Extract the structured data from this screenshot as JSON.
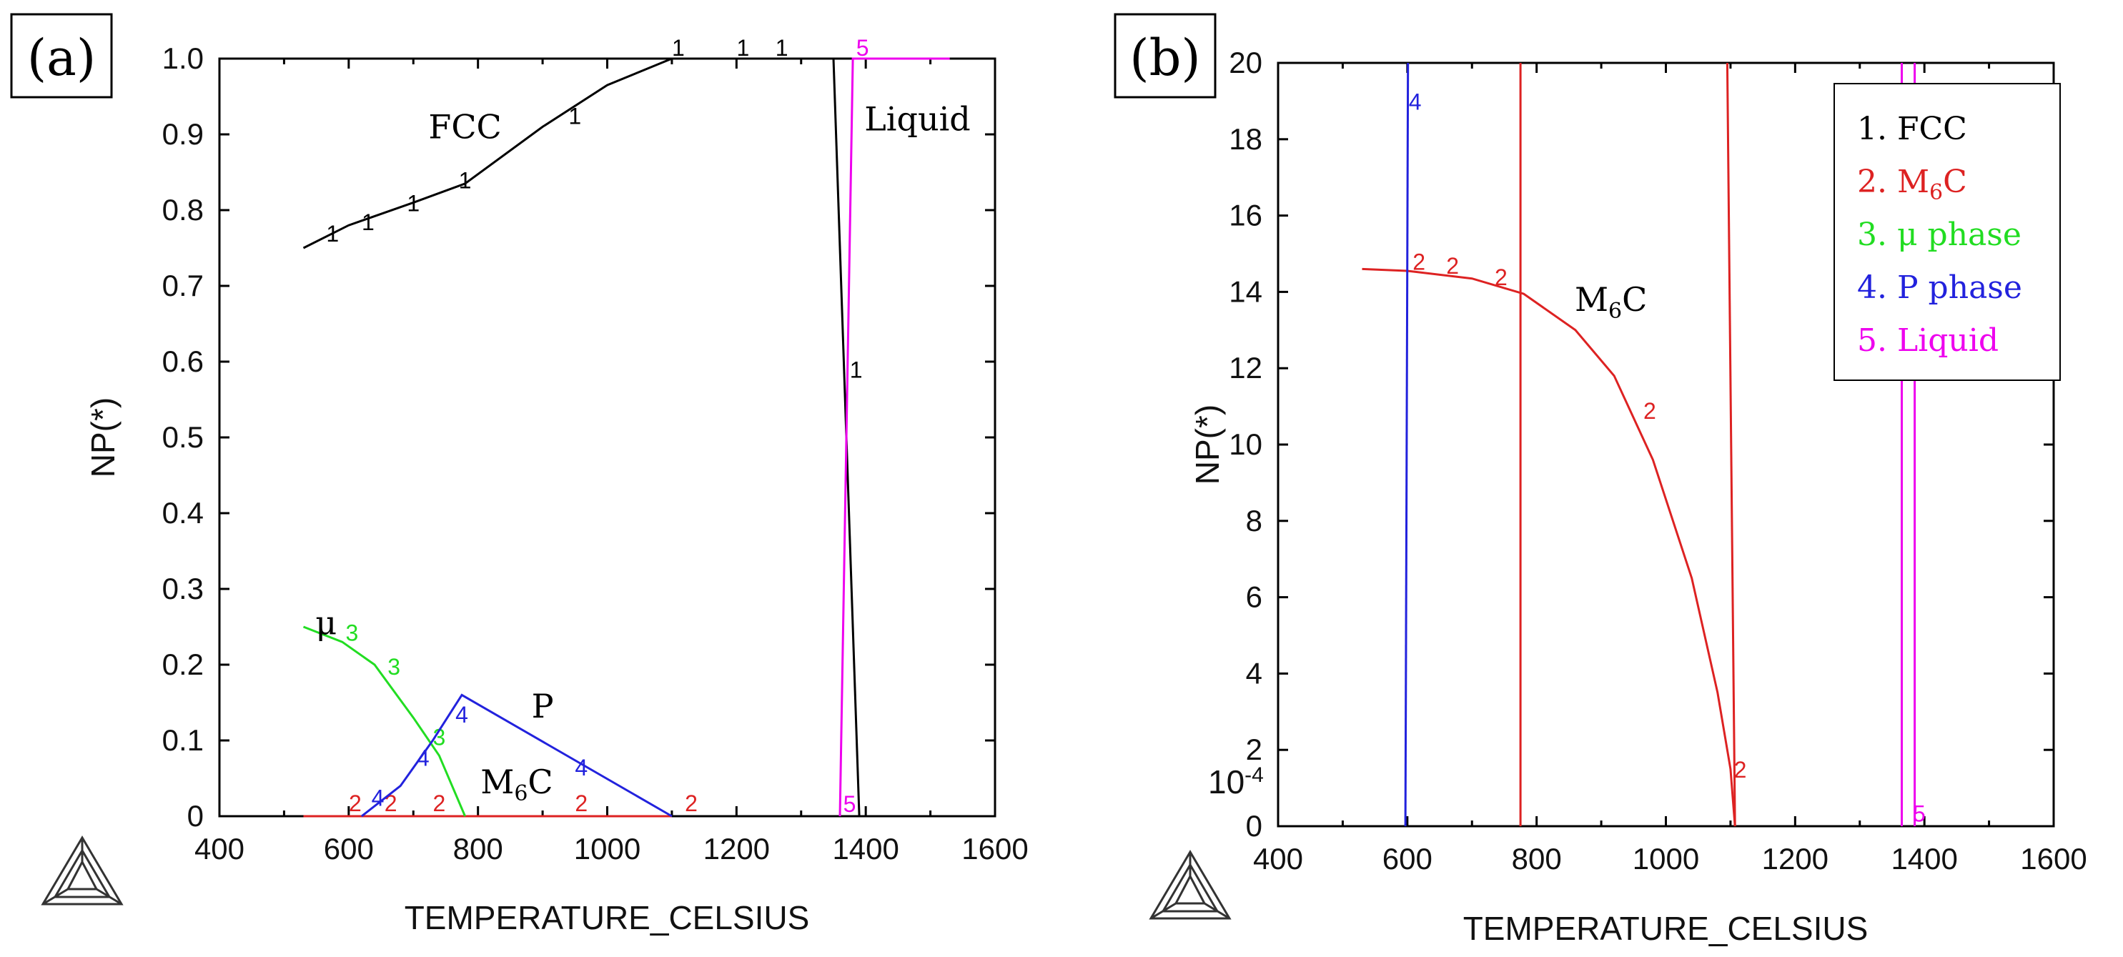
{
  "chart_data": [
    {
      "panel": "(a)",
      "type": "line",
      "xlabel": "TEMPERATURE_CELSIUS",
      "ylabel": "NP(*)",
      "xlim": [
        400,
        1600
      ],
      "ylim": [
        0,
        1.0
      ],
      "xticks": [
        "400",
        "600",
        "800",
        "1000",
        "1200",
        "1400",
        "1600"
      ],
      "yticks": [
        "0",
        "0.1",
        "0.2",
        "0.3",
        "0.4",
        "0.5",
        "0.6",
        "0.7",
        "0.8",
        "0.9",
        "1.0"
      ],
      "series": [
        {
          "id": "1",
          "name": "FCC",
          "color": "#000000",
          "points": [
            [
              530,
              0.75
            ],
            [
              600,
              0.78
            ],
            [
              700,
              0.81
            ],
            [
              780,
              0.835
            ],
            [
              900,
              0.91
            ],
            [
              1000,
              0.965
            ],
            [
              1100,
              1.0
            ],
            [
              1350,
              1.0
            ]
          ],
          "markers": [
            [
              575,
              0.77
            ],
            [
              630,
              0.785
            ],
            [
              700,
              0.81
            ],
            [
              780,
              0.84
            ],
            [
              950,
              0.925
            ],
            [
              1110,
              1.015
            ],
            [
              1210,
              1.015
            ],
            [
              1270,
              1.015
            ],
            [
              1385,
              0.59
            ]
          ]
        },
        {
          "id": "1b",
          "name": "FCC",
          "color": "#000000",
          "points": [
            [
              1350,
              1.0
            ],
            [
              1390,
              0.0
            ]
          ],
          "markers": []
        },
        {
          "id": "2",
          "name": "M6C",
          "color": "#dd2222",
          "points": [
            [
              530,
              0.0
            ],
            [
              1100,
              0.0
            ]
          ],
          "markers": [
            [
              610,
              0.018
            ],
            [
              665,
              0.018
            ],
            [
              740,
              0.018
            ],
            [
              960,
              0.018
            ],
            [
              1130,
              0.018
            ]
          ]
        },
        {
          "id": "3",
          "name": "μ",
          "color": "#22dd22",
          "points": [
            [
              530,
              0.25
            ],
            [
              590,
              0.23
            ],
            [
              640,
              0.2
            ],
            [
              700,
              0.13
            ],
            [
              740,
              0.08
            ],
            [
              780,
              0.0
            ]
          ],
          "markers": [
            [
              605,
              0.243
            ],
            [
              670,
              0.198
            ],
            [
              740,
              0.105
            ]
          ]
        },
        {
          "id": "4",
          "name": "P",
          "color": "#2222dd",
          "points": [
            [
              620,
              0.0
            ],
            [
              680,
              0.04
            ],
            [
              730,
              0.1
            ],
            [
              775,
              0.16
            ],
            [
              1100,
              0.0
            ]
          ],
          "markers": [
            [
              645,
              0.025
            ],
            [
              715,
              0.078
            ],
            [
              775,
              0.135
            ],
            [
              960,
              0.065
            ]
          ]
        },
        {
          "id": "5",
          "name": "Liquid",
          "color": "#ee00ee",
          "points": [
            [
              1360,
              0.0
            ],
            [
              1380,
              1.0
            ],
            [
              1530,
              1.0
            ]
          ],
          "markers": [
            [
              1375,
              0.017
            ],
            [
              1395,
              1.015
            ]
          ]
        }
      ],
      "annotations": [
        {
          "text": "FCC",
          "x": 780,
          "y": 0.895
        },
        {
          "text": "Liquid",
          "x": 1480,
          "y": 0.905
        },
        {
          "text": "P",
          "x": 900,
          "y": 0.13
        },
        {
          "text": "μ",
          "x": 565,
          "y": 0.24
        }
      ],
      "m6c_label": {
        "text": "M",
        "sub": "6",
        "tail": "C",
        "x": 860,
        "y": 0.03
      }
    },
    {
      "panel": "(b)",
      "type": "line",
      "xlabel": "TEMPERATURE_CELSIUS",
      "ylabel": "NP(*)",
      "xlim": [
        400,
        1600
      ],
      "ylim": [
        0,
        20
      ],
      "xticks": [
        "400",
        "600",
        "800",
        "1000",
        "1200",
        "1400",
        "1600"
      ],
      "yticks": [
        "0",
        "2",
        "4",
        "6",
        "8",
        "10",
        "12",
        "14",
        "16",
        "18",
        "20"
      ],
      "y_multiplier": "10-4",
      "series": [
        {
          "id": "2",
          "name": "M6C",
          "color": "#dd2222",
          "points": [
            [
              530,
              14.6
            ],
            [
              600,
              14.55
            ],
            [
              700,
              14.35
            ],
            [
              780,
              13.95
            ],
            [
              860,
              13.0
            ],
            [
              920,
              11.8
            ],
            [
              980,
              9.6
            ],
            [
              1040,
              6.5
            ],
            [
              1080,
              3.5
            ],
            [
              1100,
              1.5
            ],
            [
              1107,
              0.0
            ]
          ],
          "markers": [
            [
              618,
              14.8
            ],
            [
              670,
              14.7
            ],
            [
              745,
              14.4
            ],
            [
              975,
              10.9
            ],
            [
              1115,
              1.5
            ]
          ]
        },
        {
          "id": "2b",
          "name": "M6C",
          "color": "#dd2222",
          "points": [
            [
              775,
              0
            ],
            [
              775,
              20
            ]
          ],
          "markers": []
        },
        {
          "id": "2c",
          "name": "M6C",
          "color": "#dd2222",
          "points": [
            [
              1095,
              20
            ],
            [
              1107,
              0
            ]
          ],
          "markers": []
        },
        {
          "id": "4",
          "name": "P phase",
          "color": "#2222dd",
          "points": [
            [
              597,
              0
            ],
            [
              601,
              20
            ]
          ],
          "markers": [
            [
              612,
              19.0
            ]
          ]
        },
        {
          "id": "5a",
          "name": "Liquid",
          "color": "#ee00ee",
          "points": [
            [
              1365,
              0
            ],
            [
              1365,
              20
            ]
          ],
          "markers": []
        },
        {
          "id": "5b",
          "name": "Liquid",
          "color": "#ee00ee",
          "points": [
            [
              1385,
              0
            ],
            [
              1385,
              20
            ]
          ],
          "markers": [
            [
              1392,
              0.35
            ]
          ]
        }
      ],
      "annotations": [
        {
          "text": "M",
          "sub": "6",
          "tail": "C",
          "x": 915,
          "y": 13.5
        }
      ],
      "legend": [
        {
          "num": "1.",
          "label": "FCC",
          "color": "#000000"
        },
        {
          "num": "2.",
          "label": "M",
          "sub": "6",
          "tail": "C",
          "color": "#dd2222"
        },
        {
          "num": "3.",
          "label": "μ phase",
          "color": "#22dd22"
        },
        {
          "num": "4.",
          "label": "P phase",
          "color": "#2222dd"
        },
        {
          "num": "5.",
          "label": "Liquid",
          "color": "#ee00ee"
        }
      ]
    }
  ]
}
